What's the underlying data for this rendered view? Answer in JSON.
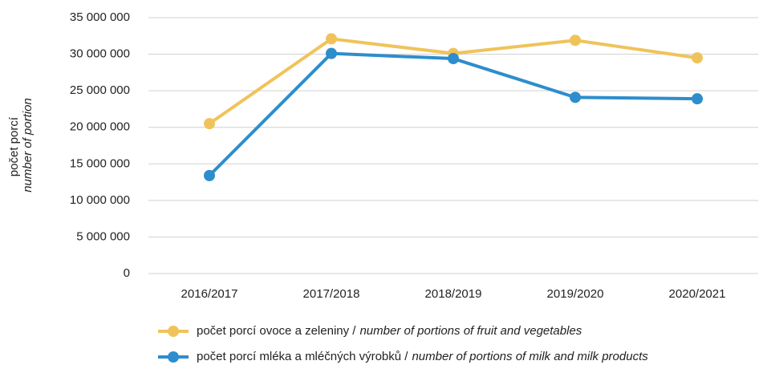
{
  "chart_data": {
    "type": "line",
    "ylabel": "počet porcí",
    "ylabel_en": "number of portion",
    "categories": [
      "2016/2017",
      "2017/2018",
      "2018/2019",
      "2019/2020",
      "2020/2021"
    ],
    "series": [
      {
        "name": "počet porcí ovoce a zeleniny /",
        "name_en": "number of portions of fruit and vegetables",
        "color": "#f0c35a",
        "values": [
          20500000,
          32100000,
          30100000,
          31900000,
          29500000
        ]
      },
      {
        "name": "počet porcí mléka a mléčných výrobků /",
        "name_en": "number of portions of milk and milk products",
        "color": "#2e8dcc",
        "values": [
          13400000,
          30100000,
          29400000,
          24100000,
          23900000
        ]
      }
    ],
    "ylim": [
      0,
      35000000
    ],
    "yticks": [
      0,
      {
        "value": 5000000,
        "label": "5 000 000"
      },
      {
        "value": 10000000,
        "label": "10 000 000"
      },
      {
        "value": 15000000,
        "label": "15 000 000"
      },
      {
        "value": 20000000,
        "label": "20 000 000"
      },
      {
        "value": 25000000,
        "label": "25 000 000"
      },
      {
        "value": 30000000,
        "label": "30 000 000"
      },
      {
        "value": 35000000,
        "label": "35 000 000"
      }
    ],
    "grid": true,
    "legend": "bottom"
  }
}
